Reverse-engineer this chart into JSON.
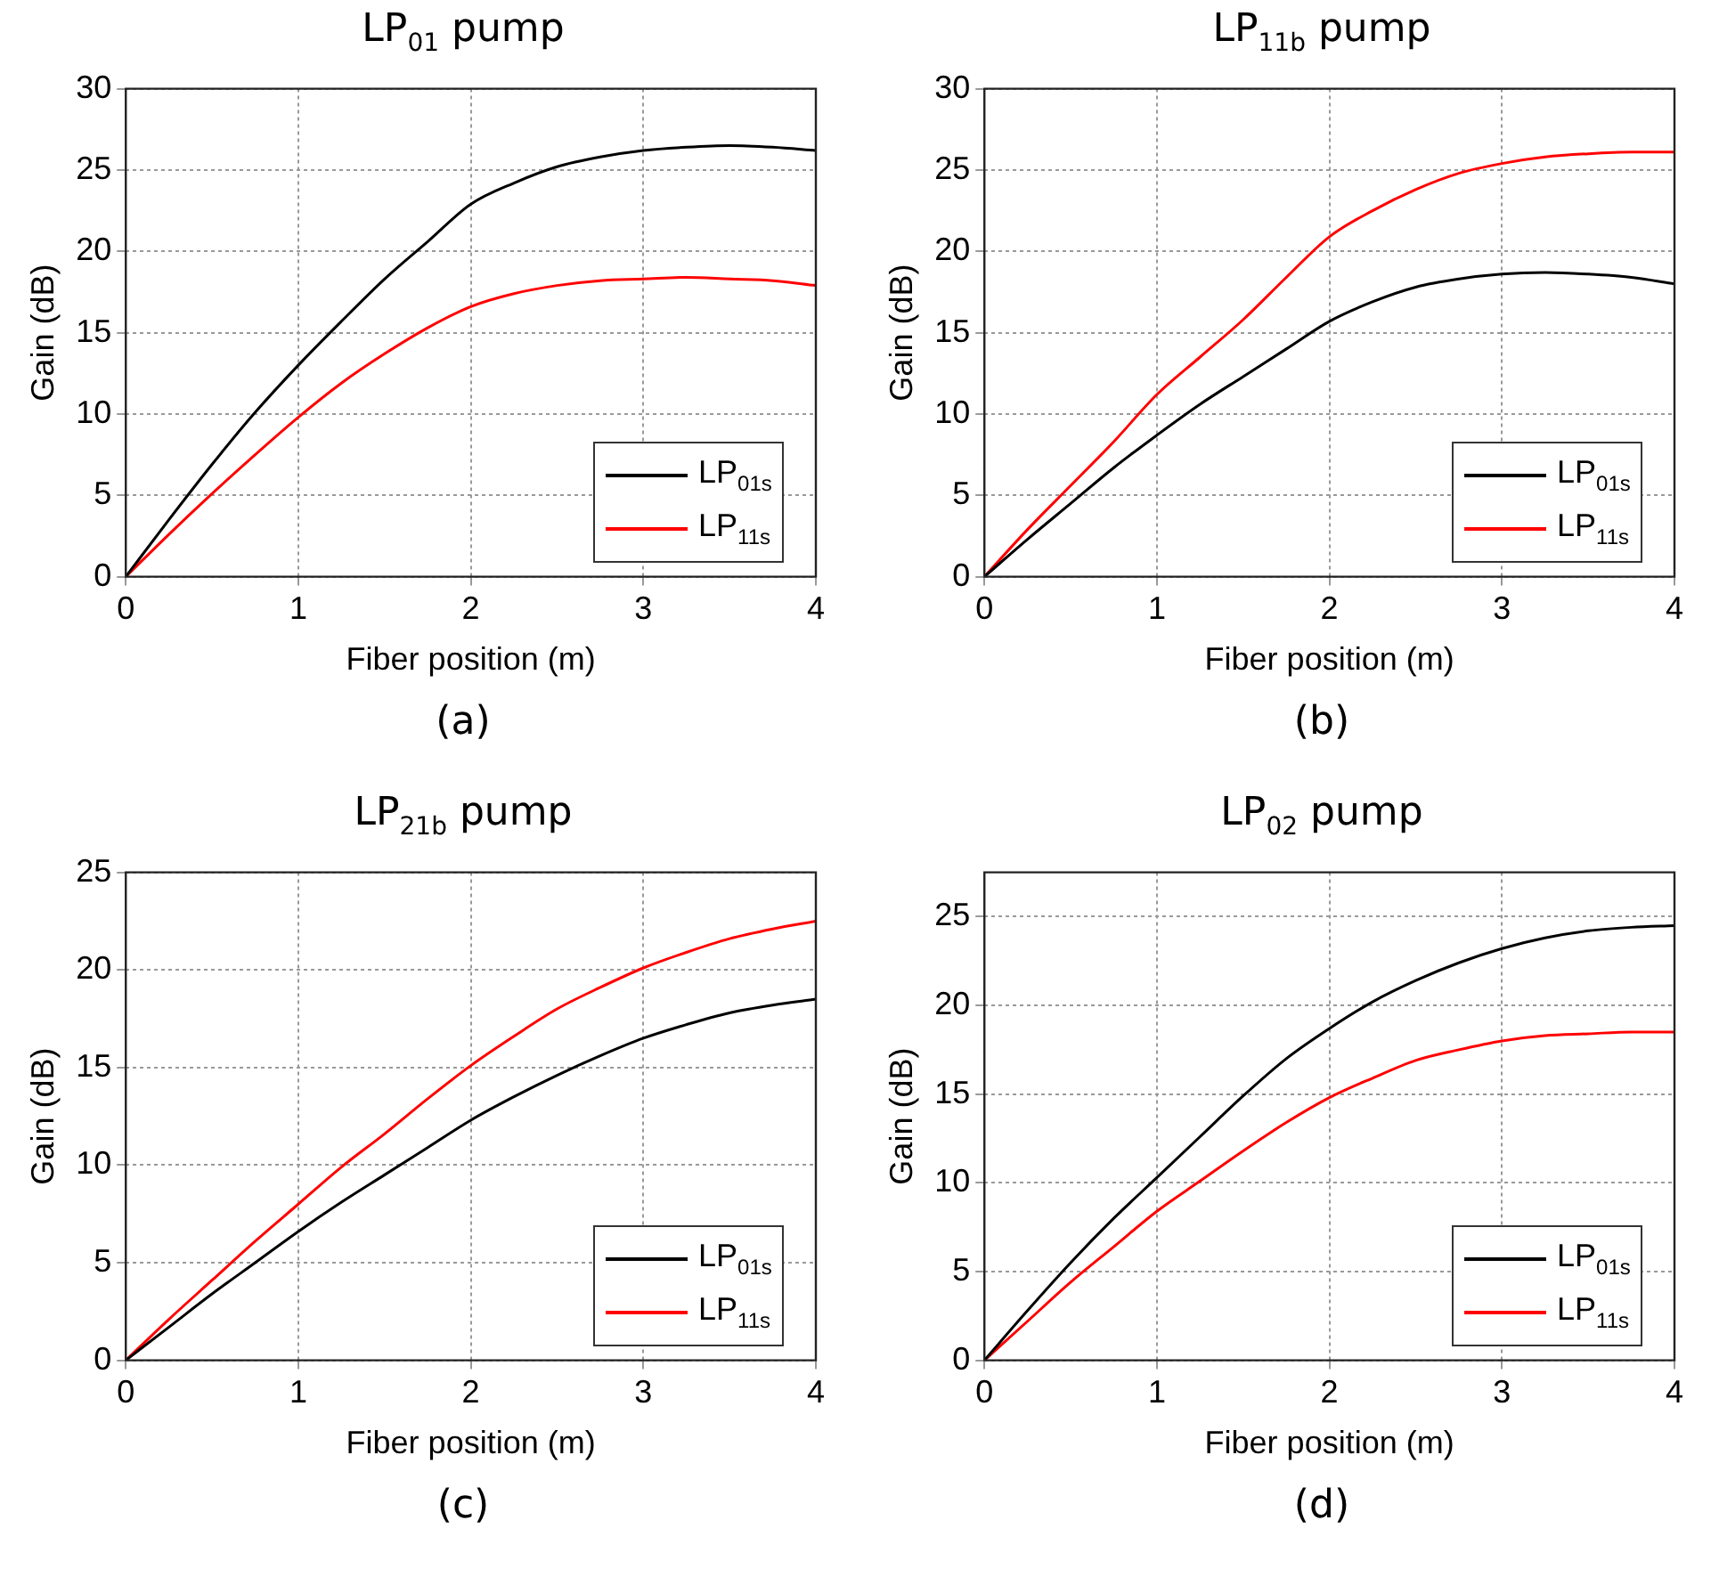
{
  "chart_data": [
    {
      "type": "line",
      "title": "LP$_{01}$ pump",
      "xlabel": "Fiber position (m)",
      "ylabel": "Gain (dB)",
      "annotations": [
        "(a)"
      ],
      "x": [
        0,
        0.25,
        0.5,
        0.75,
        1,
        1.25,
        1.5,
        1.75,
        2,
        2.25,
        2.5,
        2.75,
        3,
        3.25,
        3.5,
        3.75,
        4
      ],
      "series": [
        {
          "name": "LP$_{01s}$",
          "color": "#000000",
          "values": [
            0,
            3.5,
            6.9,
            10.1,
            13.0,
            15.7,
            18.3,
            20.6,
            22.9,
            24.2,
            25.2,
            25.8,
            26.2,
            26.4,
            26.5,
            26.4,
            26.2
          ]
        },
        {
          "name": "LP$_{11s}$",
          "color": "#ff0000",
          "values": [
            0,
            2.6,
            5.1,
            7.5,
            9.8,
            11.9,
            13.7,
            15.3,
            16.6,
            17.4,
            17.9,
            18.2,
            18.3,
            18.4,
            18.3,
            18.2,
            17.9
          ]
        }
      ],
      "xlim": [
        0,
        4
      ],
      "xticks": [
        0,
        1,
        2,
        3,
        4
      ],
      "ylim": [
        0,
        30
      ],
      "yticks": [
        0,
        5,
        10,
        15,
        20,
        25,
        30
      ],
      "grid": true,
      "legend": "bottom right",
      "line_style": "solid",
      "marker": "none"
    },
    {
      "type": "line",
      "title": "LP$_{11b}$ pump",
      "xlabel": "Fiber position (m)",
      "ylabel": "Gain (dB)",
      "annotations": [
        "(b)"
      ],
      "x": [
        0,
        0.25,
        0.5,
        0.75,
        1,
        1.25,
        1.5,
        1.75,
        2,
        2.25,
        2.5,
        2.75,
        3,
        3.25,
        3.5,
        3.75,
        4
      ],
      "series": [
        {
          "name": "LP$_{01s}$",
          "color": "#000000",
          "values": [
            0,
            2.3,
            4.5,
            6.7,
            8.7,
            10.6,
            12.3,
            14.0,
            15.7,
            16.9,
            17.8,
            18.3,
            18.6,
            18.7,
            18.6,
            18.4,
            18.0
          ]
        },
        {
          "name": "LP$_{11s}$",
          "color": "#ff0000",
          "values": [
            0,
            2.9,
            5.6,
            8.3,
            11.2,
            13.5,
            15.8,
            18.4,
            20.9,
            22.5,
            23.8,
            24.8,
            25.4,
            25.8,
            26.0,
            26.1,
            26.1
          ]
        }
      ],
      "xlim": [
        0,
        4
      ],
      "xticks": [
        0,
        1,
        2,
        3,
        4
      ],
      "ylim": [
        0,
        30
      ],
      "yticks": [
        0,
        5,
        10,
        15,
        20,
        25,
        30
      ],
      "grid": true,
      "legend": "bottom right",
      "line_style": "solid",
      "marker": "none"
    },
    {
      "type": "line",
      "title": "LP$_{21b}$ pump",
      "xlabel": "Fiber position (m)",
      "ylabel": "Gain (dB)",
      "annotations": [
        "(c)"
      ],
      "x": [
        0,
        0.25,
        0.5,
        0.75,
        1,
        1.25,
        1.5,
        1.75,
        2,
        2.25,
        2.5,
        2.75,
        3,
        3.25,
        3.5,
        3.75,
        4
      ],
      "series": [
        {
          "name": "LP$_{01s}$",
          "color": "#000000",
          "values": [
            0,
            1.7,
            3.4,
            5.0,
            6.6,
            8.1,
            9.5,
            10.9,
            12.3,
            13.5,
            14.6,
            15.6,
            16.5,
            17.2,
            17.8,
            18.2,
            18.5
          ]
        },
        {
          "name": "LP$_{11s}$",
          "color": "#ff0000",
          "values": [
            0,
            2.1,
            4.1,
            6.1,
            8.0,
            9.9,
            11.6,
            13.4,
            15.1,
            16.6,
            18.0,
            19.1,
            20.1,
            20.9,
            21.6,
            22.1,
            22.5
          ]
        }
      ],
      "xlim": [
        0,
        4
      ],
      "xticks": [
        0,
        1,
        2,
        3,
        4
      ],
      "ylim": [
        0,
        25
      ],
      "yticks": [
        0,
        5,
        10,
        15,
        20,
        25
      ],
      "grid": true,
      "legend": "bottom right",
      "line_style": "solid",
      "marker": "none"
    },
    {
      "type": "line",
      "title": "LP$_{02}$ pump",
      "xlabel": "Fiber position (m)",
      "ylabel": "Gain (dB)",
      "annotations": [
        "(d)"
      ],
      "x": [
        0,
        0.25,
        0.5,
        0.75,
        1,
        1.25,
        1.5,
        1.75,
        2,
        2.25,
        2.5,
        2.75,
        3,
        3.25,
        3.5,
        3.75,
        4
      ],
      "series": [
        {
          "name": "LP$_{01s}$",
          "color": "#000000",
          "values": [
            0,
            2.8,
            5.5,
            8.0,
            10.3,
            12.6,
            14.9,
            17.0,
            18.7,
            20.2,
            21.4,
            22.4,
            23.2,
            23.8,
            24.2,
            24.4,
            24.5
          ]
        },
        {
          "name": "LP$_{11s}$",
          "color": "#ff0000",
          "values": [
            0,
            2.2,
            4.4,
            6.4,
            8.4,
            10.1,
            11.8,
            13.4,
            14.8,
            15.9,
            16.9,
            17.5,
            18.0,
            18.3,
            18.4,
            18.5,
            18.5
          ]
        }
      ],
      "xlim": [
        0,
        4
      ],
      "xticks": [
        0,
        1,
        2,
        3,
        4
      ],
      "ylim": [
        0,
        27.5
      ],
      "yticks": [
        0,
        5,
        10,
        15,
        20,
        25
      ],
      "grid": true,
      "legend": "bottom right",
      "line_style": "solid",
      "marker": "none"
    }
  ]
}
